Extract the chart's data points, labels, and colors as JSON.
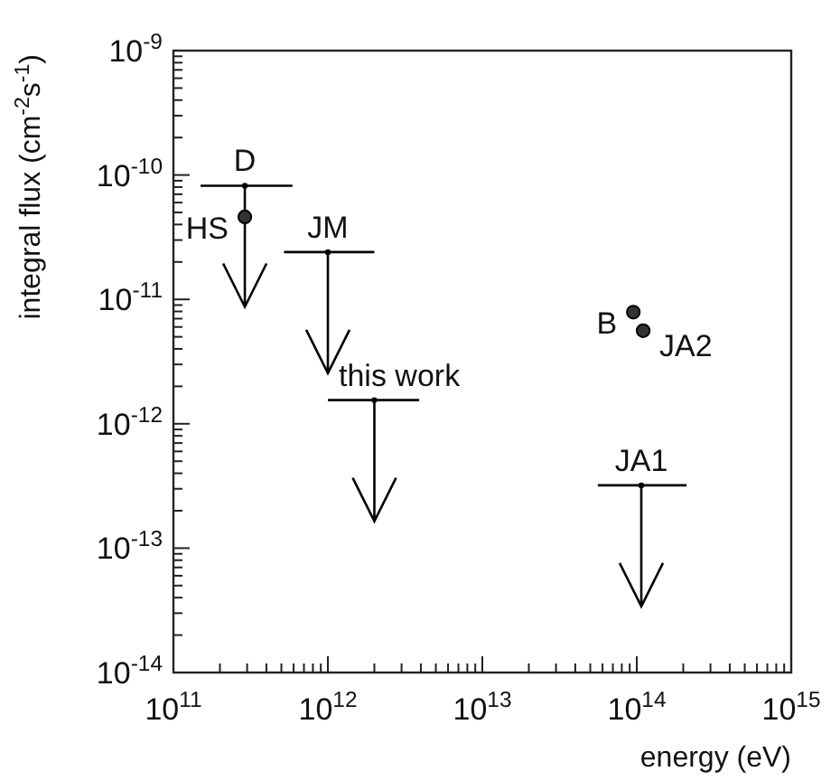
{
  "chart_data": {
    "type": "scatter",
    "xlabel": "energy (eV)",
    "ylabel": "integral flux (cm$^{-2}$s$^{-1}$)",
    "log": "xy",
    "grid": false,
    "xlim": [
      100000000000.0,
      1000000000000000.0
    ],
    "ylim": [
      1e-14,
      1e-09
    ],
    "xticks": [
      {
        "value": 100000000000.0,
        "label": "10$^{11}$"
      },
      {
        "value": 200000000000.0,
        "label": null
      },
      {
        "value": 300000000000.0,
        "label": null
      },
      {
        "value": 400000000000.0,
        "label": null
      },
      {
        "value": 500000000000.0,
        "label": null
      },
      {
        "value": 600000000000.0,
        "label": null
      },
      {
        "value": 700000000000.0,
        "label": null
      },
      {
        "value": 800000000000.0,
        "label": null
      },
      {
        "value": 900000000000.0,
        "label": null
      },
      {
        "value": 1000000000000.0,
        "label": "10$^{12}$"
      },
      {
        "value": 2000000000000.0,
        "label": null
      },
      {
        "value": 3000000000000.0,
        "label": null
      },
      {
        "value": 4000000000000.0,
        "label": null
      },
      {
        "value": 5000000000000.0,
        "label": null
      },
      {
        "value": 6000000000000.0,
        "label": null
      },
      {
        "value": 7000000000000.0,
        "label": null
      },
      {
        "value": 8000000000000.0,
        "label": null
      },
      {
        "value": 9000000000000.0,
        "label": null
      },
      {
        "value": 10000000000000.0,
        "label": "10$^{13}$"
      },
      {
        "value": 20000000000000.0,
        "label": null
      },
      {
        "value": 30000000000000.0,
        "label": null
      },
      {
        "value": 40000000000000.0,
        "label": null
      },
      {
        "value": 50000000000000.0,
        "label": null
      },
      {
        "value": 60000000000000.0,
        "label": null
      },
      {
        "value": 70000000000000.0,
        "label": null
      },
      {
        "value": 80000000000000.0,
        "label": null
      },
      {
        "value": 90000000000000.0,
        "label": null
      },
      {
        "value": 100000000000000.0,
        "label": "10$^{14}$"
      },
      {
        "value": 200000000000000.0,
        "label": null
      },
      {
        "value": 300000000000000.0,
        "label": null
      },
      {
        "value": 400000000000000.0,
        "label": null
      },
      {
        "value": 500000000000000.0,
        "label": null
      },
      {
        "value": 600000000000000.0,
        "label": null
      },
      {
        "value": 700000000000000.0,
        "label": null
      },
      {
        "value": 800000000000000.0,
        "label": null
      },
      {
        "value": 900000000000000.0,
        "label": null
      },
      {
        "value": 1000000000000000.0,
        "label": "10$^{15}$"
      }
    ],
    "yticks": [
      {
        "value": 1e-14,
        "label": "10$^{-14}$"
      },
      {
        "value": 2e-14,
        "label": null
      },
      {
        "value": 3e-14,
        "label": null
      },
      {
        "value": 4e-14,
        "label": null
      },
      {
        "value": 5e-14,
        "label": null
      },
      {
        "value": 6e-14,
        "label": null
      },
      {
        "value": 7e-14,
        "label": null
      },
      {
        "value": 8e-14,
        "label": null
      },
      {
        "value": 9e-14,
        "label": null
      },
      {
        "value": 1e-13,
        "label": "10$^{-13}$"
      },
      {
        "value": 2e-13,
        "label": null
      },
      {
        "value": 3e-13,
        "label": null
      },
      {
        "value": 4e-13,
        "label": null
      },
      {
        "value": 5e-13,
        "label": null
      },
      {
        "value": 6e-13,
        "label": null
      },
      {
        "value": 7e-13,
        "label": null
      },
      {
        "value": 8e-13,
        "label": null
      },
      {
        "value": 9e-13,
        "label": null
      },
      {
        "value": 1e-12,
        "label": "10$^{-12}$"
      },
      {
        "value": 2e-12,
        "label": null
      },
      {
        "value": 3e-12,
        "label": null
      },
      {
        "value": 4e-12,
        "label": null
      },
      {
        "value": 5e-12,
        "label": null
      },
      {
        "value": 6e-12,
        "label": null
      },
      {
        "value": 7e-12,
        "label": null
      },
      {
        "value": 8e-12,
        "label": null
      },
      {
        "value": 9e-12,
        "label": null
      },
      {
        "value": 1e-11,
        "label": "10$^{-11}$"
      },
      {
        "value": 2e-11,
        "label": null
      },
      {
        "value": 3e-11,
        "label": null
      },
      {
        "value": 4e-11,
        "label": null
      },
      {
        "value": 5e-11,
        "label": null
      },
      {
        "value": 6e-11,
        "label": null
      },
      {
        "value": 7e-11,
        "label": null
      },
      {
        "value": 8e-11,
        "label": null
      },
      {
        "value": 9e-11,
        "label": null
      },
      {
        "value": 1e-10,
        "label": "10$^{-10}$"
      },
      {
        "value": 2e-10,
        "label": null
      },
      {
        "value": 3e-10,
        "label": null
      },
      {
        "value": 4e-10,
        "label": null
      },
      {
        "value": 5e-10,
        "label": null
      },
      {
        "value": 6e-10,
        "label": null
      },
      {
        "value": 7e-10,
        "label": null
      },
      {
        "value": 8e-10,
        "label": null
      },
      {
        "value": 9e-10,
        "label": null
      },
      {
        "value": 1e-09,
        "label": "10$^{-9}$"
      }
    ],
    "series": [
      {
        "name": "D",
        "color": "#000000",
        "x": [
          290000000000.0
        ],
        "values": [
          8.2e-11
        ],
        "xerrors": [
          [
            150000000000.0,
            590000000000.0
          ]
        ]
      },
      {
        "name": "HS",
        "color": "#333333",
        "marker": "circle",
        "x": [
          290000000000.0
        ],
        "values": [
          4.6e-11
        ]
      },
      {
        "name": "JM",
        "color": "#000000",
        "x": [
          1000000000000.0
        ],
        "values": [
          2.4e-11
        ],
        "xerrors": [
          [
            520000000000.0,
            2000000000000.0
          ]
        ]
      },
      {
        "name": "this work",
        "color": "#000000",
        "x": [
          2000000000000.0
        ],
        "values": [
          1.55e-12
        ],
        "xerrors": [
          [
            1000000000000.0,
            3900000000000.0
          ]
        ]
      },
      {
        "name": "JA1",
        "color": "#000000",
        "x": [
          107000000000000.0
        ],
        "values": [
          3.2e-13
        ],
        "xerrors": [
          [
            56000000000000.0,
            210000000000000.0
          ]
        ]
      },
      {
        "name": "B",
        "color": "#333333",
        "marker": "circle",
        "x": [
          95000000000000.0
        ],
        "values": [
          7.9e-12
        ]
      },
      {
        "name": "JA2",
        "color": "#333333",
        "marker": "circle",
        "x": [
          110000000000000.0
        ],
        "values": [
          5.6e-12
        ]
      }
    ]
  }
}
